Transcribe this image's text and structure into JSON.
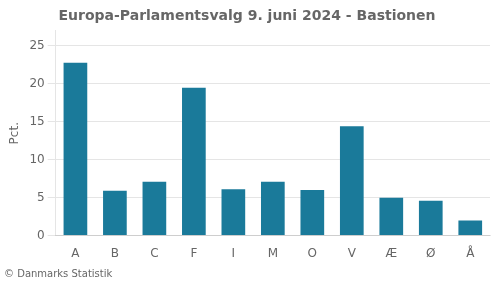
{
  "chart_data": {
    "type": "bar",
    "title": "Europa-Parlamentsvalg 9. juni 2024 - Bastionen",
    "categories": [
      "A",
      "B",
      "C",
      "F",
      "I",
      "M",
      "O",
      "V",
      "Æ",
      "Ø",
      "Å"
    ],
    "values": [
      22.8,
      5.9,
      7.1,
      19.5,
      6.1,
      7.1,
      6.0,
      14.4,
      5.0,
      4.6,
      2.0
    ],
    "color": "#1a7a9a",
    "ylabel": "Pct.",
    "footer": "© Danmarks Statistik",
    "ylim": [
      0,
      27
    ],
    "yticks": [
      0,
      5,
      10,
      15,
      20,
      25
    ],
    "grid": true
  }
}
